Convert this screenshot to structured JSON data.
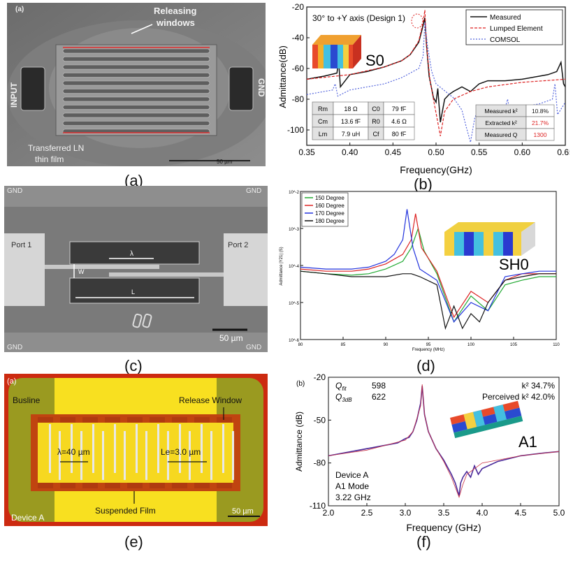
{
  "panel_a": {
    "label": "(a)",
    "caption": "(a)",
    "releasing_windows": "Releasing\nwindows",
    "input": "INPUT",
    "gnd": "GND",
    "film": "Transferred LN\nthin film",
    "scale": "50 µm"
  },
  "panel_b": {
    "caption": "(b)",
    "title": "30° to +Y axis (Design 1)",
    "mode": "S0",
    "legend": [
      "Measured",
      "Lumped Element",
      "COMSOL"
    ],
    "table_left": [
      [
        "Rm",
        "18 Ω",
        "C0",
        "79 fF"
      ],
      [
        "Cm",
        "13.6 fF",
        "R0",
        "4.6 Ω"
      ],
      [
        "Lm",
        "7.9 uH",
        "Cf",
        "80 fF"
      ]
    ],
    "table_right": [
      [
        "Measured k²",
        "10.8%"
      ],
      [
        "Extracted k²",
        "21.7%"
      ],
      [
        "Measured Q",
        "1300"
      ]
    ]
  },
  "panel_c": {
    "caption": "(c)",
    "gnd": "GND",
    "port1": "Port 1",
    "port2": "Port 2",
    "lambda": "λ",
    "w": "W",
    "l": "L",
    "scale": "50 µm"
  },
  "panel_d": {
    "caption": "(d)",
    "mode": "SH0",
    "legend": [
      "150 Degree",
      "160 Degree",
      "170 Degree",
      "180 Degree"
    ],
    "ylabel": "Admittance |Y21| (S)",
    "xlabel": "Frequency (MHz)"
  },
  "panel_e": {
    "caption": "(e)",
    "label": "(a)",
    "busline": "Busline",
    "release": "Release Window",
    "lambda": "λ=40 µm",
    "le": "Le=3.0 µm",
    "suspended": "Suspended Film",
    "device": "Device A",
    "scale": "50 µm"
  },
  "panel_f": {
    "caption": "(f)",
    "label": "(b)",
    "qfit_label": "Qfit",
    "qfit": "598",
    "q3db_label": "Q3dB",
    "q3db": "622",
    "k2": "k² 34.7%",
    "pk2": "Perceived k² 42.0%",
    "mode": "A1",
    "device": "Device A",
    "a1mode": "A1 Mode",
    "freq": "3.22 GHz"
  },
  "chart_data": [
    {
      "type": "line",
      "panel": "b",
      "xlabel": "Frequency(GHz)",
      "ylabel": "Admittance(dB)",
      "xlim": [
        0.35,
        0.65
      ],
      "ylim": [
        -110,
        -20
      ],
      "xticks": [
        0.35,
        0.4,
        0.45,
        0.5,
        0.55,
        0.6,
        0.65
      ],
      "yticks": [
        -20,
        -40,
        -60,
        -80,
        -100
      ],
      "series": [
        {
          "name": "Measured",
          "color": "#111111",
          "x": [
            0.35,
            0.37,
            0.385,
            0.387,
            0.389,
            0.4,
            0.42,
            0.44,
            0.46,
            0.47,
            0.48,
            0.485,
            0.487,
            0.489,
            0.492,
            0.497,
            0.5,
            0.502,
            0.505,
            0.51,
            0.515,
            0.52,
            0.53,
            0.54,
            0.55,
            0.56,
            0.58,
            0.6,
            0.62,
            0.63,
            0.64,
            0.645,
            0.648,
            0.65
          ],
          "y": [
            -67,
            -65,
            -63,
            -55,
            -72,
            -64,
            -62,
            -59,
            -55,
            -51,
            -43,
            -32,
            -27,
            -45,
            -65,
            -79,
            -82,
            -73,
            -95,
            -80,
            -77,
            -75,
            -72,
            -75,
            -70,
            -68,
            -68,
            -67,
            -65,
            -64,
            -62,
            -56,
            -70,
            -72
          ]
        },
        {
          "name": "Lumped Element",
          "color": "#dd2222",
          "x": [
            0.35,
            0.4,
            0.44,
            0.46,
            0.47,
            0.48,
            0.485,
            0.487,
            0.489,
            0.493,
            0.498,
            0.502,
            0.505,
            0.51,
            0.52,
            0.54,
            0.56,
            0.6,
            0.65
          ],
          "y": [
            -67,
            -64,
            -59,
            -55,
            -51,
            -42,
            -30,
            -22,
            -45,
            -68,
            -83,
            -95,
            -104,
            -88,
            -80,
            -75,
            -72,
            -69,
            -67
          ]
        },
        {
          "name": "COMSOL",
          "color": "#5566dd",
          "x": [
            0.35,
            0.38,
            0.383,
            0.386,
            0.4,
            0.44,
            0.46,
            0.48,
            0.485,
            0.487,
            0.49,
            0.495,
            0.5,
            0.52,
            0.53,
            0.535,
            0.54,
            0.545,
            0.55,
            0.58,
            0.583,
            0.585,
            0.6,
            0.62,
            0.635,
            0.638,
            0.641,
            0.65
          ],
          "y": [
            -77,
            -74,
            -70,
            -78,
            -74,
            -70,
            -66,
            -60,
            -52,
            -30,
            -45,
            -62,
            -70,
            -79,
            -87,
            -98,
            -108,
            -92,
            -86,
            -86,
            -80,
            -86,
            -85,
            -83,
            -80,
            -70,
            -90,
            -82
          ]
        }
      ]
    },
    {
      "type": "line",
      "panel": "d",
      "xlabel": "Frequency (MHz)",
      "ylabel": "Admittance |Y21| (S)",
      "xlim": [
        80,
        110
      ],
      "yscale": "log",
      "ylim": [
        1e-06,
        0.01
      ],
      "xticks": [
        80,
        85,
        90,
        95,
        100,
        105,
        110
      ],
      "yticks": [
        "10^-2",
        "10^-3",
        "10^-4",
        "10^-5",
        "10^-6"
      ],
      "series": [
        {
          "name": "150 Degree",
          "color": "#22aa33",
          "x": [
            80,
            83,
            86,
            88,
            90,
            92,
            93,
            93.8,
            94.5,
            96,
            98,
            100,
            102,
            104,
            106,
            108,
            110
          ],
          "y": [
            7e-05,
            6e-05,
            5.5e-05,
            6e-05,
            8e-05,
            0.00013,
            0.0003,
            0.001,
            0.00025,
            6e-05,
            3e-06,
            1.5e-05,
            6e-06,
            3e-05,
            4e-05,
            5e-05,
            5e-05
          ]
        },
        {
          "name": "160 Degree",
          "color": "#dd2222",
          "x": [
            80,
            83,
            86,
            88,
            90,
            92,
            93,
            93.5,
            94.2,
            96,
            98,
            100,
            102,
            104,
            106,
            108,
            110
          ],
          "y": [
            8e-05,
            7e-05,
            7e-05,
            8e-05,
            0.00011,
            0.0002,
            0.0005,
            0.0025,
            0.0003,
            7e-05,
            4e-06,
            2e-05,
            1e-05,
            4e-05,
            6e-05,
            6e-05,
            6e-05
          ]
        },
        {
          "name": "170 Degree",
          "color": "#2233dd",
          "x": [
            80,
            83,
            86,
            88,
            90,
            91,
            92,
            92.5,
            93.2,
            94,
            96,
            98,
            100,
            102,
            104,
            106,
            108,
            110
          ],
          "y": [
            9e-05,
            8e-05,
            8e-05,
            9e-05,
            0.00013,
            0.0002,
            0.0005,
            0.0033,
            0.0003,
            8e-05,
            4e-05,
            3e-06,
            1e-05,
            6e-06,
            5e-05,
            6e-05,
            7e-05,
            7e-05
          ]
        },
        {
          "name": "180 Degree",
          "color": "#111111",
          "x": [
            80,
            83,
            86,
            88,
            90,
            92,
            93,
            94,
            96,
            97,
            98,
            99,
            100,
            101,
            102,
            104,
            106,
            108,
            110
          ],
          "y": [
            7e-05,
            6e-05,
            5e-05,
            5e-05,
            5e-05,
            6e-05,
            6e-05,
            5e-05,
            3e-05,
            2e-06,
            8e-06,
            2e-06,
            5e-06,
            3e-06,
            1e-05,
            4e-05,
            5e-05,
            6e-05,
            6e-05
          ]
        }
      ]
    },
    {
      "type": "line",
      "panel": "f",
      "xlabel": "Frequency (GHz)",
      "ylabel": "Admittance (dB)",
      "xlim": [
        2.0,
        5.0
      ],
      "ylim": [
        -110,
        -20
      ],
      "xticks": [
        2.0,
        2.5,
        3.0,
        3.5,
        4.0,
        4.5,
        5.0
      ],
      "yticks": [
        -20,
        -50,
        -80,
        -110
      ],
      "series": [
        {
          "name": "Measured",
          "color": "#4a2a9a",
          "x": [
            2.0,
            2.3,
            2.6,
            2.9,
            3.0,
            3.05,
            3.1,
            3.15,
            3.2,
            3.22,
            3.25,
            3.3,
            3.4,
            3.5,
            3.6,
            3.65,
            3.7,
            3.72,
            3.75,
            3.8,
            3.85,
            3.9,
            3.95,
            4.0,
            4.2,
            4.5,
            4.8,
            5.0
          ],
          "y": [
            -75,
            -72,
            -69,
            -66,
            -63,
            -62,
            -58,
            -50,
            -38,
            -26,
            -46,
            -58,
            -70,
            -78,
            -88,
            -94,
            -103,
            -94,
            -90,
            -86,
            -90,
            -82,
            -88,
            -84,
            -79,
            -75,
            -73,
            -72
          ]
        },
        {
          "name": "Fit",
          "color": "#cc3344",
          "x": [
            2.0,
            2.5,
            3.0,
            3.1,
            3.2,
            3.22,
            3.25,
            3.3,
            3.4,
            3.5,
            3.6,
            3.7,
            3.75,
            3.8,
            4.0,
            4.5,
            5.0
          ],
          "y": [
            -75,
            -71,
            -64,
            -58,
            -40,
            -25,
            -46,
            -58,
            -70,
            -79,
            -90,
            -104,
            -95,
            -88,
            -80,
            -75,
            -72
          ]
        }
      ]
    }
  ]
}
